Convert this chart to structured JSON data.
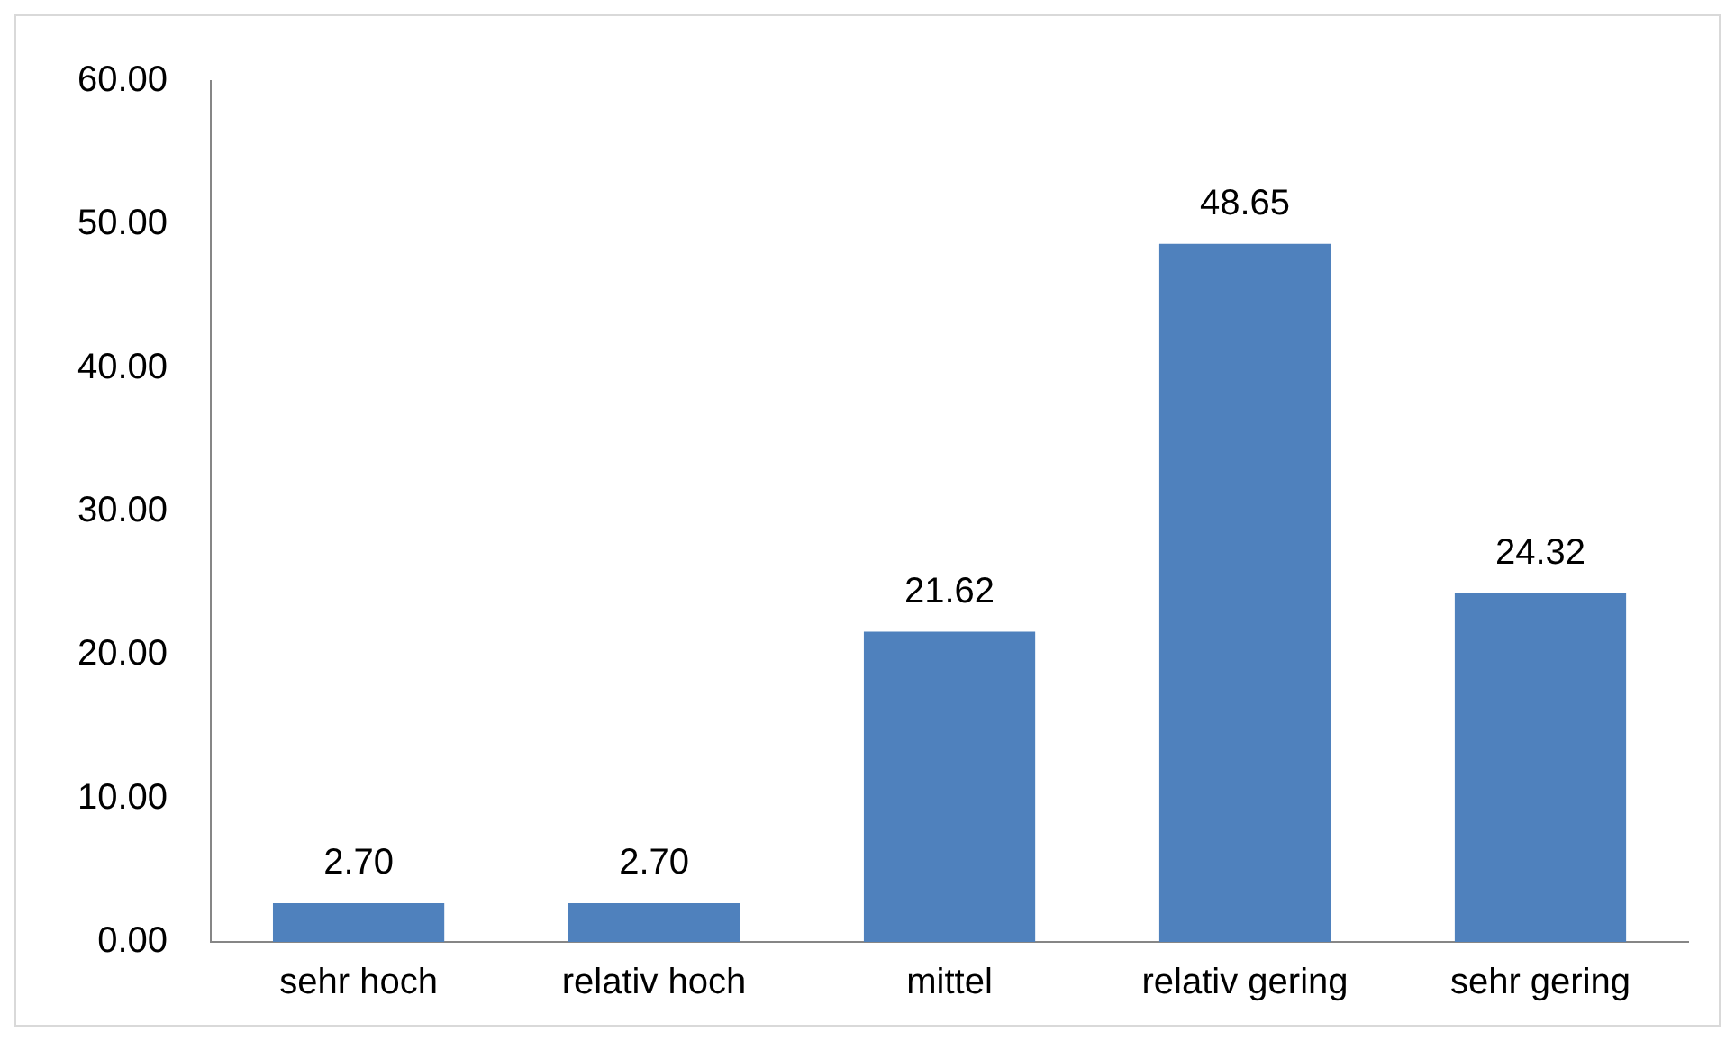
{
  "chart_data": {
    "type": "bar",
    "categories": [
      "sehr hoch",
      "relativ hoch",
      "mittel",
      "relativ gering",
      "sehr gering"
    ],
    "values": [
      2.7,
      2.7,
      21.62,
      48.65,
      24.32
    ],
    "value_labels": [
      "2.70",
      "2.70",
      "21.62",
      "48.65",
      "24.32"
    ],
    "color": "#4f81bd",
    "ylim": [
      0,
      60
    ],
    "yticks": [
      {
        "value": 0,
        "label": "0.00"
      },
      {
        "value": 10,
        "label": "10.00"
      },
      {
        "value": 20,
        "label": "20.00"
      },
      {
        "value": 30,
        "label": "30.00"
      },
      {
        "value": 40,
        "label": "40.00"
      },
      {
        "value": 50,
        "label": "50.00"
      },
      {
        "value": 60,
        "label": "60.00"
      }
    ],
    "grid": false,
    "legend": false
  }
}
